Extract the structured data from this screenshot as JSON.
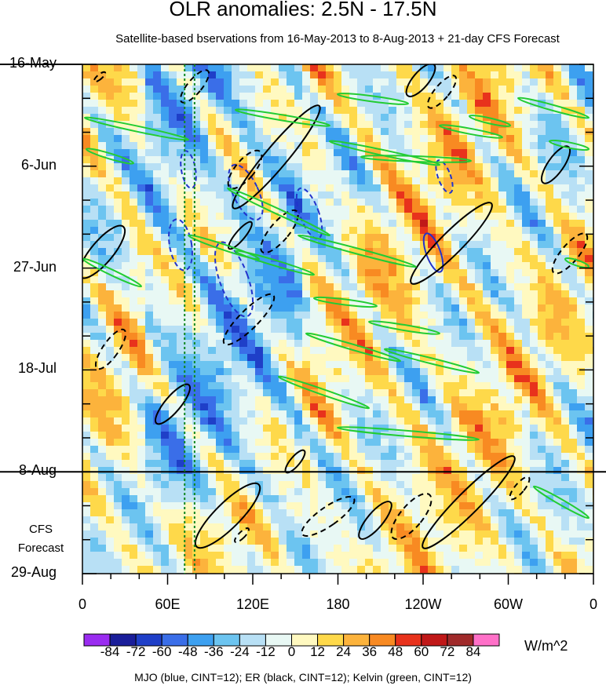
{
  "title": "OLR anomalies: 2.5N - 17.5N",
  "subtitle": "Satellite-based bservations from 16-May-2013 to 8-Aug-2013 + 21-day CFS Forecast",
  "footnote": "MJO (blue, CINT=12); ER (black, CINT=12); Kelvin (green, CINT=12)",
  "units": "W/m^2",
  "forecast_label": [
    "CFS",
    "Forecast"
  ],
  "chart_data": {
    "type": "heatmap",
    "title": "OLR anomalies: 2.5N - 17.5N",
    "x_axis": {
      "ticks": [
        {
          "lon": 0,
          "label": "0"
        },
        {
          "lon": 60,
          "label": "60E"
        },
        {
          "lon": 120,
          "label": "120E"
        },
        {
          "lon": 180,
          "label": "180"
        },
        {
          "lon": 240,
          "label": "120W"
        },
        {
          "lon": 300,
          "label": "60W"
        },
        {
          "lon": 360,
          "label": "0"
        }
      ],
      "range": [
        0,
        360
      ]
    },
    "y_axis": {
      "ticks": [
        {
          "day": 0,
          "label": "16-May"
        },
        {
          "day": 21,
          "label": "6-Jun"
        },
        {
          "day": 42,
          "label": "27-Jun"
        },
        {
          "day": 63,
          "label": "18-Jul"
        },
        {
          "day": 84,
          "label": "8-Aug"
        },
        {
          "day": 105,
          "label": "29-Aug"
        }
      ],
      "range": [
        "16-May",
        "29-Aug"
      ],
      "reversed": true,
      "forecast_start": "8-Aug"
    },
    "colorbar": {
      "labels": [
        "-84",
        "-72",
        "-60",
        "-48",
        "-36",
        "-24",
        "-12",
        "0",
        "12",
        "24",
        "36",
        "48",
        "60",
        "72",
        "84"
      ],
      "colors": [
        "#9a2cf0",
        "#1a1e9a",
        "#1f3fc8",
        "#3a6ee8",
        "#3da0f0",
        "#6cc4f0",
        "#b8e0f5",
        "#e8f8f4",
        "#fff9c0",
        "#fed94a",
        "#fcb33c",
        "#f88a22",
        "#e8321c",
        "#c01818",
        "#a02a2a",
        "#ff70c8"
      ]
    },
    "mjo_marker_lons": [
      72,
      79
    ],
    "contours": {
      "MJO": "blue",
      "ER": "black",
      "Kelvin": "green",
      "cint": 12
    }
  }
}
